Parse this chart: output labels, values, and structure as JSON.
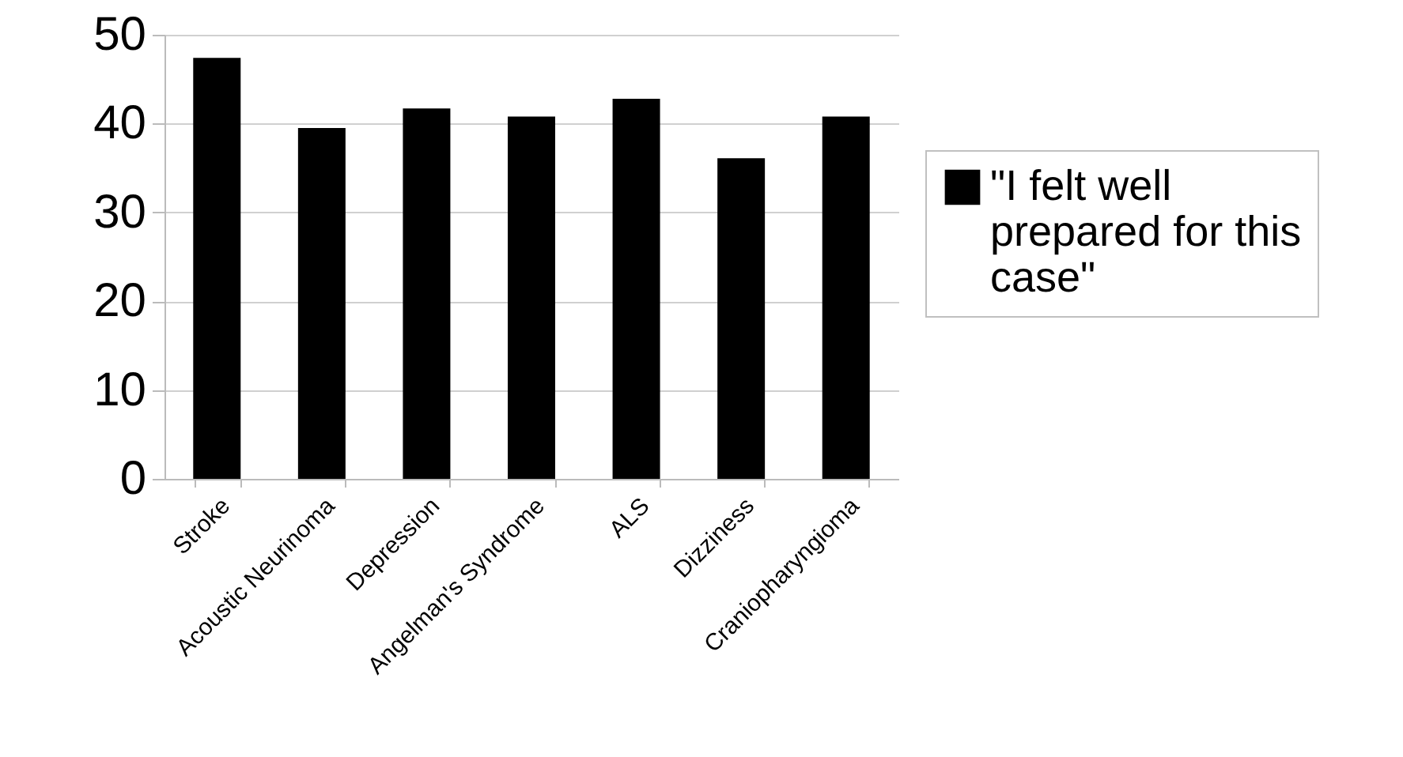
{
  "chart_data": {
    "type": "bar",
    "categories": [
      "Stroke",
      "Acoustic Neurinoma",
      "Depression",
      "Angelman's Syndrome",
      "ALS",
      "Dizziness",
      "Craniopharyngioma"
    ],
    "series": [
      {
        "name": "\"I felt well prepared for this case\"",
        "color": "#000000",
        "values": [
          47.4,
          39.5,
          41.7,
          40.8,
          42.8,
          36.1,
          40.8
        ]
      }
    ],
    "ylim": [
      0,
      50
    ],
    "yticks": [
      0,
      10,
      20,
      30,
      40,
      50
    ],
    "grid": "y",
    "legend": "right"
  }
}
